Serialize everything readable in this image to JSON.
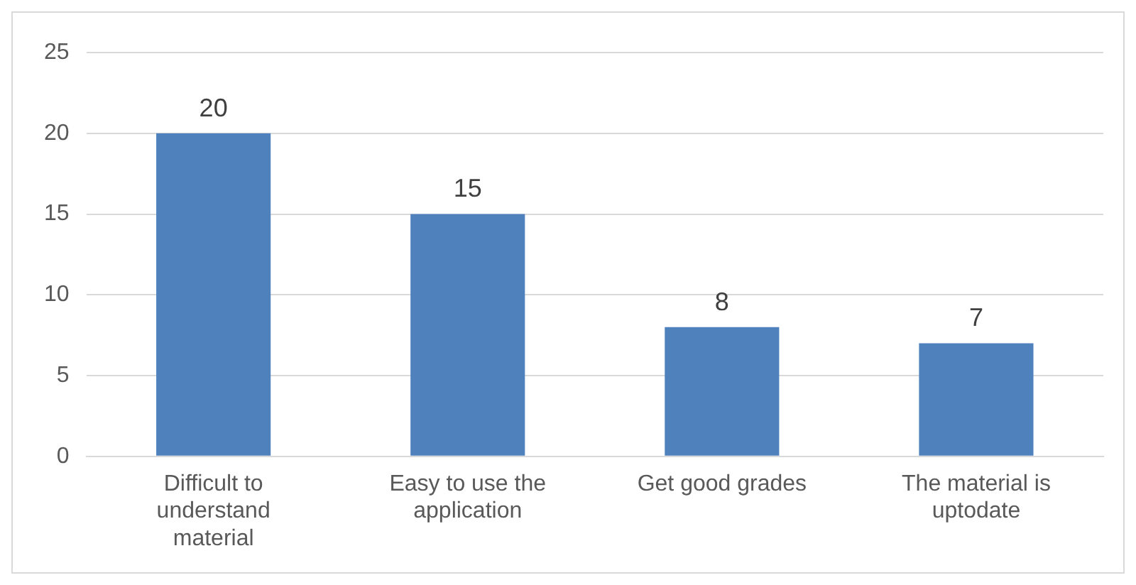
{
  "chart_data": {
    "type": "bar",
    "categories": [
      "Difficult to understand material",
      "Easy to use the application",
      "Get good grades",
      "The material is uptodate"
    ],
    "values": [
      20,
      15,
      8,
      7
    ],
    "color": "#4f81bd",
    "ylim": [
      0,
      25
    ],
    "yticks": [
      0,
      5,
      10,
      15,
      20,
      25
    ],
    "grid": "y",
    "data_labels": true,
    "legend": false
  }
}
